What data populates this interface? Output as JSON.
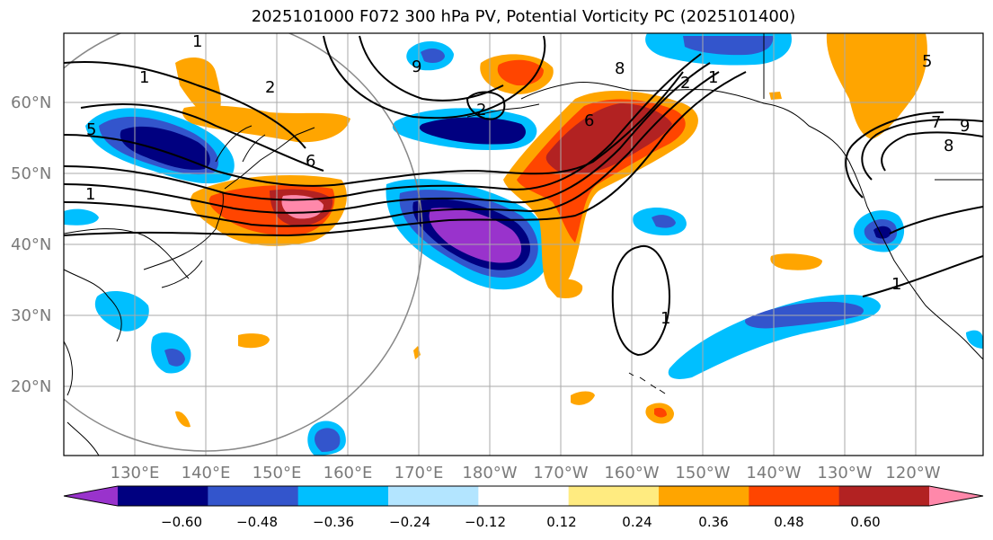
{
  "title": "2025101000 F072 300 hPa PV, Potential Vorticity PC (2025101400)",
  "lat_labels": [
    "60°N",
    "50°N",
    "40°N",
    "30°N",
    "20°N"
  ],
  "lon_labels": [
    "130°E",
    "140°E",
    "150°E",
    "160°E",
    "170°E",
    "180°W",
    "170°W",
    "160°W",
    "150°W",
    "140°W",
    "130°W",
    "120°W"
  ],
  "colorbar": {
    "colors": [
      "#9933cc",
      "#000080",
      "#3355cc",
      "#00bfff",
      "#b3e5ff",
      "#ffffff",
      "#ffeb80",
      "#ffa500",
      "#ff4500",
      "#b22222",
      "#ff88aa"
    ],
    "tick_labels": [
      "−0.60",
      "−0.48",
      "−0.36",
      "−0.24",
      "−0.12",
      "0.12",
      "0.24",
      "0.36",
      "0.48",
      "0.60"
    ]
  },
  "contour_labels": [
    "1",
    "2",
    "5",
    "6",
    "1",
    "2",
    "9",
    "8",
    "2",
    "1",
    "1",
    "6",
    "5",
    "7",
    "8",
    "9",
    "1",
    "1"
  ]
}
